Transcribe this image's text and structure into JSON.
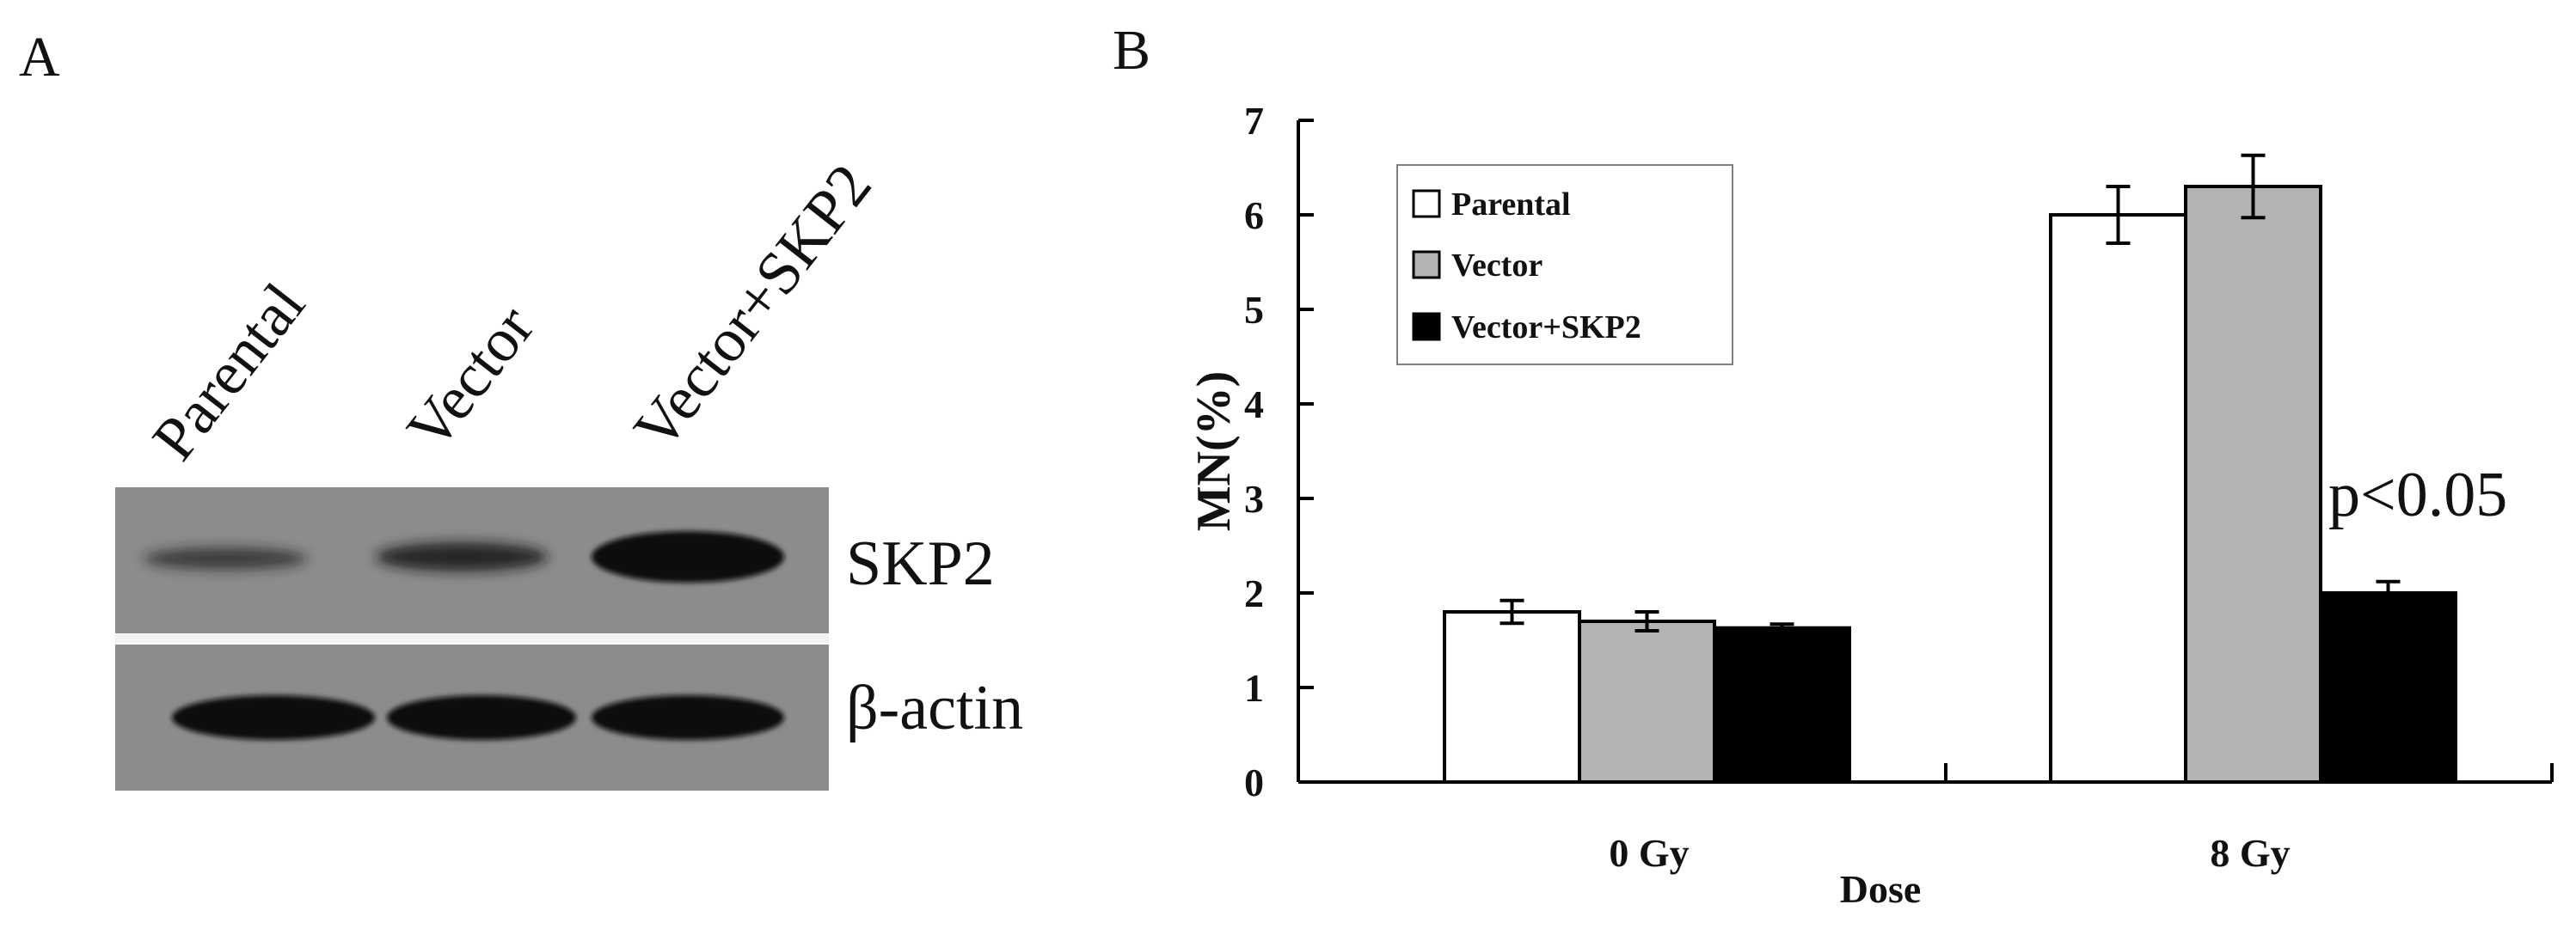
{
  "panelA": {
    "label": "A",
    "lanes": [
      "Parental",
      "Vector",
      "Vector+SKP2"
    ],
    "blots": [
      {
        "label": "SKP2",
        "band_intensity": [
          0.35,
          0.55,
          1.0
        ]
      },
      {
        "label": "β-actin",
        "band_intensity": [
          1.0,
          1.0,
          1.0
        ]
      }
    ]
  },
  "panelB": {
    "label": "B",
    "annotation": "p<0.05",
    "legend": [
      "Parental",
      "Vector",
      "Vector+SKP2"
    ]
  },
  "colors": {
    "Parental": "#ffffff",
    "Vector": "#b3b3b3",
    "Vector+SKP2": "#000000",
    "blot_bg": "#8c8c8c",
    "band": "#141414"
  },
  "chart_data": {
    "type": "bar",
    "title": "",
    "xlabel": "Dose",
    "ylabel": "MN(%)",
    "categories": [
      "0 Gy",
      "8 Gy"
    ],
    "ylim": [
      0,
      7
    ],
    "yticks": [
      0,
      1,
      2,
      3,
      4,
      5,
      6,
      7
    ],
    "grid": false,
    "legend_position": "top-left",
    "series": [
      {
        "name": "Parental",
        "values": [
          1.8,
          6.0
        ],
        "errors": [
          0.12,
          0.3
        ]
      },
      {
        "name": "Vector",
        "values": [
          1.7,
          6.3
        ],
        "errors": [
          0.1,
          0.33
        ]
      },
      {
        "name": "Vector+SKP2",
        "values": [
          1.63,
          2.0
        ],
        "errors": [
          0.04,
          0.12
        ]
      }
    ]
  }
}
